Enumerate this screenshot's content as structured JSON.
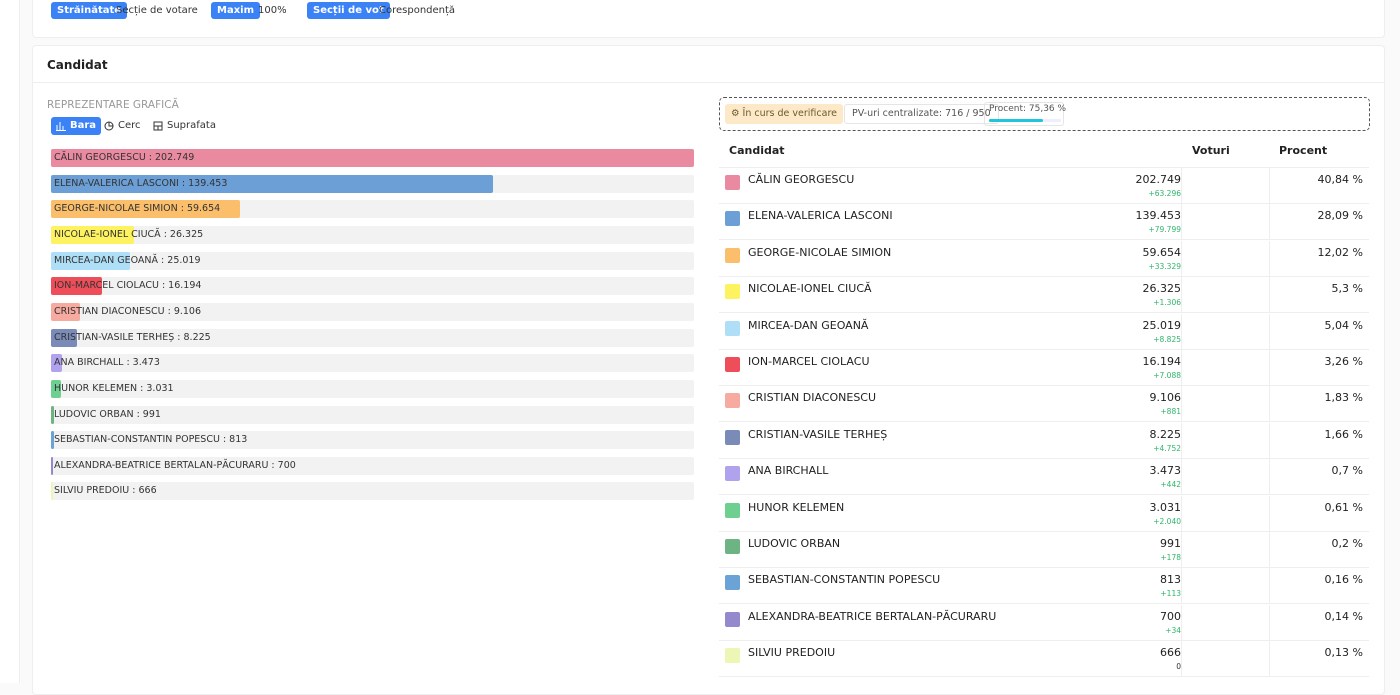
{
  "filters": [
    {
      "tag": "Străinătate",
      "value": "Secție de votare"
    },
    {
      "tag": "Maxim",
      "value": "100%"
    },
    {
      "tag": "Secții de vot",
      "value": "Corespondență"
    }
  ],
  "section_title": "Candidat",
  "chart": {
    "heading": "REPREZENTARE GRAFICĂ",
    "tabs": [
      "Bara",
      "Cerc",
      "Suprafata"
    ],
    "xlim": [
      0,
      202749
    ],
    "bars": [
      {
        "label": "CĂLIN GEORGESCU : 202.749",
        "value": 202749,
        "color": "#ea8aa1"
      },
      {
        "label": "ELENA-VALERICA LASCONI : 139.453",
        "value": 139453,
        "color": "#6b9fd5"
      },
      {
        "label": "GEORGE-NICOLAE SIMION : 59.654",
        "value": 59654,
        "color": "#fbbf6c"
      },
      {
        "label": "NICOLAE-IONEL CIUCĂ : 26.325",
        "value": 26325,
        "color": "#fdf260"
      },
      {
        "label": "MIRCEA-DAN GEOANĂ : 25.019",
        "value": 25019,
        "color": "#afdff6"
      },
      {
        "label": "ION-MARCEL CIOLACU : 16.194",
        "value": 16194,
        "color": "#ee4e5a"
      },
      {
        "label": "CRISTIAN DIACONESCU : 9.106",
        "value": 9106,
        "color": "#f7aa9f"
      },
      {
        "label": "CRISTIAN-VASILE TERHEȘ : 8.225",
        "value": 8225,
        "color": "#7b8bb7"
      },
      {
        "label": "ANA BIRCHALL : 3.473",
        "value": 3473,
        "color": "#b1a2ee"
      },
      {
        "label": "HUNOR KELEMEN : 3.031",
        "value": 3031,
        "color": "#6dcf90"
      },
      {
        "label": "LUDOVIC ORBAN : 991",
        "value": 991,
        "color": "#6db383"
      },
      {
        "label": "SEBASTIAN-CONSTANTIN POPESCU : 813",
        "value": 813,
        "color": "#6ba3d6"
      },
      {
        "label": "ALEXANDRA-BEATRICE BERTALAN-PĂCURARU : 700",
        "value": 700,
        "color": "#9489cc"
      },
      {
        "label": "SILVIU PREDOIU : 666",
        "value": 666,
        "color": "#eef6b6"
      }
    ]
  },
  "status": {
    "state": "În curs de verificare",
    "centralized": "PV-uri centralizate: 716 / 950",
    "progress_label": "Procent: 75,36 %",
    "progress": 75.36,
    "progress_lim": [
      0,
      100
    ]
  },
  "table": {
    "headers": [
      "Candidat",
      "Voturi",
      "Procent"
    ],
    "rows": [
      {
        "name": "CĂLIN GEORGESCU",
        "votes": "202.749",
        "delta": "+63.296",
        "percent": "40,84 %",
        "color": "#ea8aa1"
      },
      {
        "name": "ELENA-VALERICA LASCONI",
        "votes": "139.453",
        "delta": "+79.799",
        "percent": "28,09 %",
        "color": "#6b9fd5"
      },
      {
        "name": "GEORGE-NICOLAE SIMION",
        "votes": "59.654",
        "delta": "+33.329",
        "percent": "12,02 %",
        "color": "#fbbf6c"
      },
      {
        "name": "NICOLAE-IONEL CIUCĂ",
        "votes": "26.325",
        "delta": "+1.306",
        "percent": "5,3 %",
        "color": "#fdf260"
      },
      {
        "name": "MIRCEA-DAN GEOANĂ",
        "votes": "25.019",
        "delta": "+8.825",
        "percent": "5,04 %",
        "color": "#afdff6"
      },
      {
        "name": "ION-MARCEL CIOLACU",
        "votes": "16.194",
        "delta": "+7.088",
        "percent": "3,26 %",
        "color": "#ee4e5a"
      },
      {
        "name": "CRISTIAN DIACONESCU",
        "votes": "9.106",
        "delta": "+881",
        "percent": "1,83 %",
        "color": "#f7aa9f"
      },
      {
        "name": "CRISTIAN-VASILE TERHEȘ",
        "votes": "8.225",
        "delta": "+4.752",
        "percent": "1,66 %",
        "color": "#7b8bb7"
      },
      {
        "name": "ANA BIRCHALL",
        "votes": "3.473",
        "delta": "+442",
        "percent": "0,7 %",
        "color": "#b1a2ee"
      },
      {
        "name": "HUNOR KELEMEN",
        "votes": "3.031",
        "delta": "+2.040",
        "percent": "0,61 %",
        "color": "#6dcf90"
      },
      {
        "name": "LUDOVIC ORBAN",
        "votes": "991",
        "delta": "+178",
        "percent": "0,2 %",
        "color": "#6db383"
      },
      {
        "name": "SEBASTIAN-CONSTANTIN POPESCU",
        "votes": "813",
        "delta": "+113",
        "percent": "0,16 %",
        "color": "#6ba3d6"
      },
      {
        "name": "ALEXANDRA-BEATRICE BERTALAN-PĂCURARU",
        "votes": "700",
        "delta": "+34",
        "percent": "0,14 %",
        "color": "#9489cc"
      },
      {
        "name": "SILVIU PREDOIU",
        "votes": "666",
        "delta": "0",
        "percent": "0,13 %",
        "color": "#eef6b6"
      }
    ]
  }
}
